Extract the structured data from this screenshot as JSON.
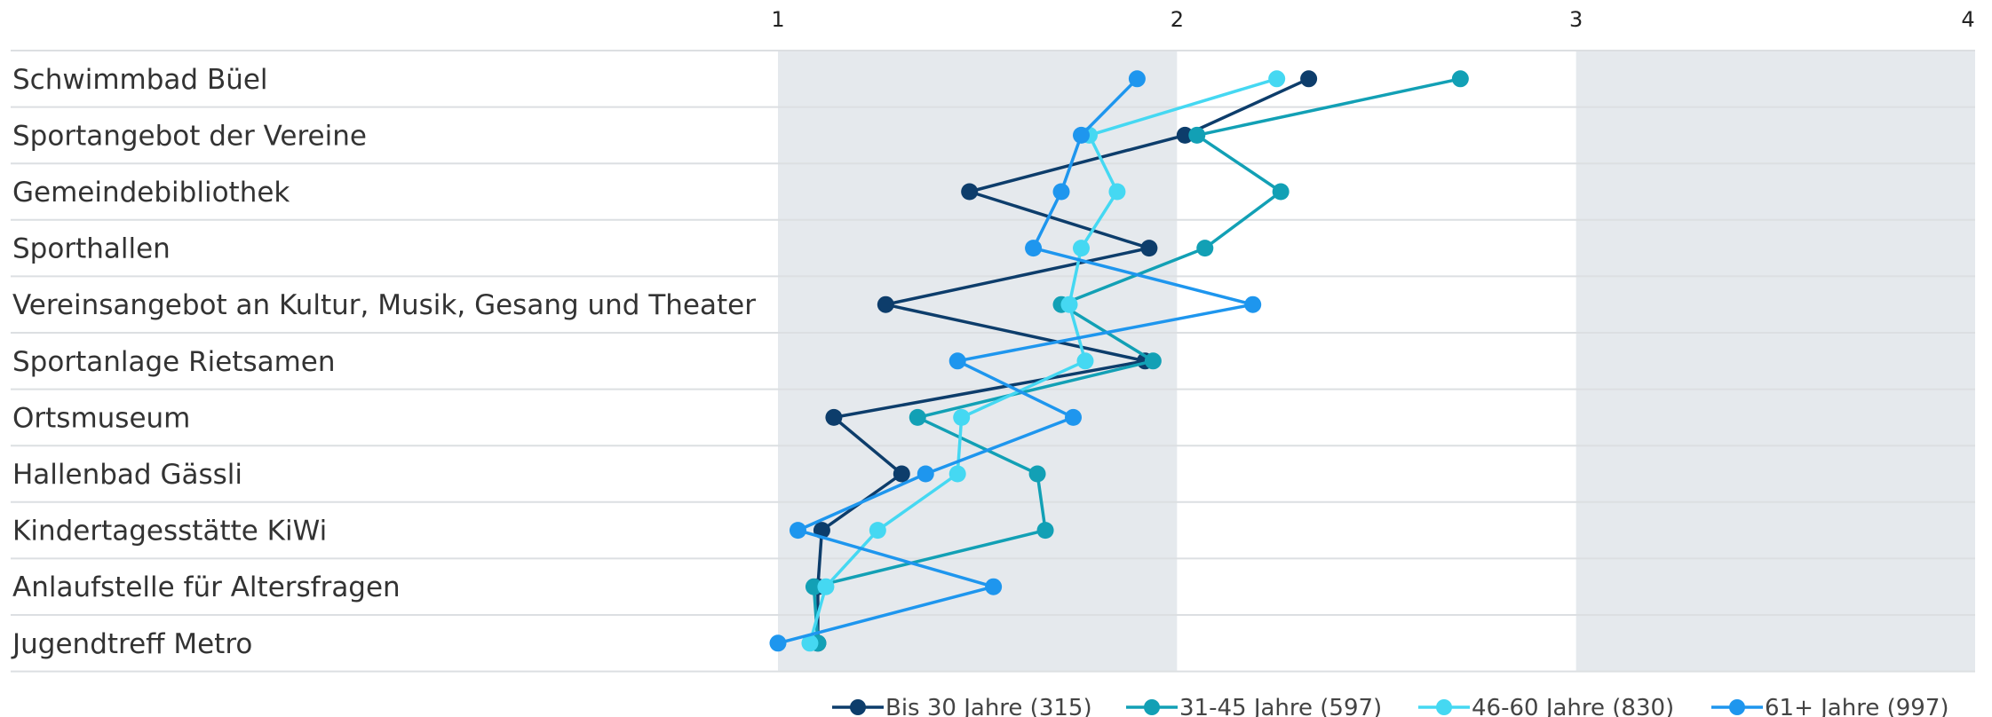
{
  "chart_data": {
    "type": "line",
    "orientation": "horizontal",
    "x_ticks": [
      1,
      2,
      3,
      4
    ],
    "xlim": [
      1,
      4
    ],
    "alternating_bands": true,
    "grid": true,
    "legend_position": "bottom",
    "categories": [
      "Schwimmbad Büel",
      "Sportangebot der Vereine",
      "Gemeindebibliothek",
      "Sporthallen",
      "Vereinsangebot an Kultur, Musik, Gesang und Theater",
      "Sportanlage Rietsamen",
      "Ortsmuseum",
      "Hallenbad Gässli",
      "Kindertagesstätte KiWi",
      "Anlaufstelle für Altersfragen",
      "Jugendtreff Metro"
    ],
    "series": [
      {
        "name": "Bis 30 Jahre (315)",
        "color": "#0d3d6b",
        "values": [
          2.33,
          2.02,
          1.48,
          1.93,
          1.27,
          1.92,
          1.14,
          1.31,
          1.11,
          1.1,
          1.1
        ]
      },
      {
        "name": "31-45 Jahre (597)",
        "color": "#12a0b5",
        "values": [
          2.71,
          2.05,
          2.26,
          2.07,
          1.71,
          1.94,
          1.35,
          1.65,
          1.67,
          1.09,
          1.1
        ]
      },
      {
        "name": "46-60 Jahre (830)",
        "color": "#45d8f2",
        "values": [
          2.25,
          1.78,
          1.85,
          1.76,
          1.73,
          1.77,
          1.46,
          1.45,
          1.25,
          1.12,
          1.08
        ]
      },
      {
        "name": "61+ Jahre (997)",
        "color": "#1e96ee",
        "values": [
          1.9,
          1.76,
          1.71,
          1.64,
          2.19,
          1.45,
          1.74,
          1.37,
          1.05,
          1.54,
          1.0
        ]
      }
    ]
  }
}
